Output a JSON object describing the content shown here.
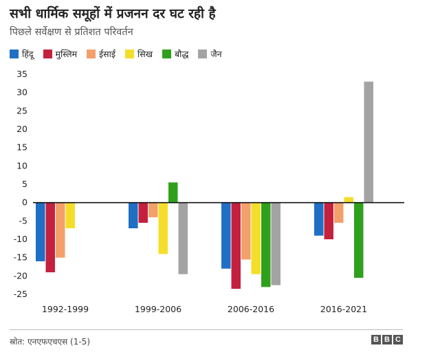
{
  "chart_data": {
    "type": "bar",
    "title": "सभी धार्मिक समूहों में प्रजनन दर घट रही है",
    "subtitle": "पिछले सर्वेक्षण से प्रतिशत परिवर्तन",
    "categories": [
      "1992-1999",
      "1999-2006",
      "2006-2016",
      "2016-2021"
    ],
    "series": [
      {
        "name": "हिंदू",
        "color": "#1f6fc5",
        "values": [
          -16,
          -7,
          -18,
          -9
        ]
      },
      {
        "name": "मुस्लिम",
        "color": "#c4213f",
        "values": [
          -19,
          -5.5,
          -23.5,
          -10
        ]
      },
      {
        "name": "ईसाई",
        "color": "#f4a06b",
        "values": [
          -15,
          -4,
          -15.5,
          -5.5
        ]
      },
      {
        "name": "सिख",
        "color": "#f5de2a",
        "values": [
          -7,
          -14,
          -19.5,
          1.5
        ]
      },
      {
        "name": "बौद्ध",
        "color": "#2fa01b",
        "values": [
          null,
          5.5,
          -23,
          -20.5
        ]
      },
      {
        "name": "जैन",
        "color": "#a3a3a3",
        "values": [
          null,
          -19.5,
          -22.5,
          33
        ]
      }
    ],
    "ylim": [
      -25,
      35
    ],
    "yticks": [
      -25,
      -20,
      -15,
      -10,
      -5,
      0,
      5,
      10,
      15,
      20,
      25,
      30,
      35
    ],
    "grid": false,
    "legend_position": "top-left"
  },
  "footer": {
    "source": "स्रोत: एनएफएचएस (1-5)",
    "logo_letters": [
      "B",
      "B",
      "C"
    ]
  }
}
